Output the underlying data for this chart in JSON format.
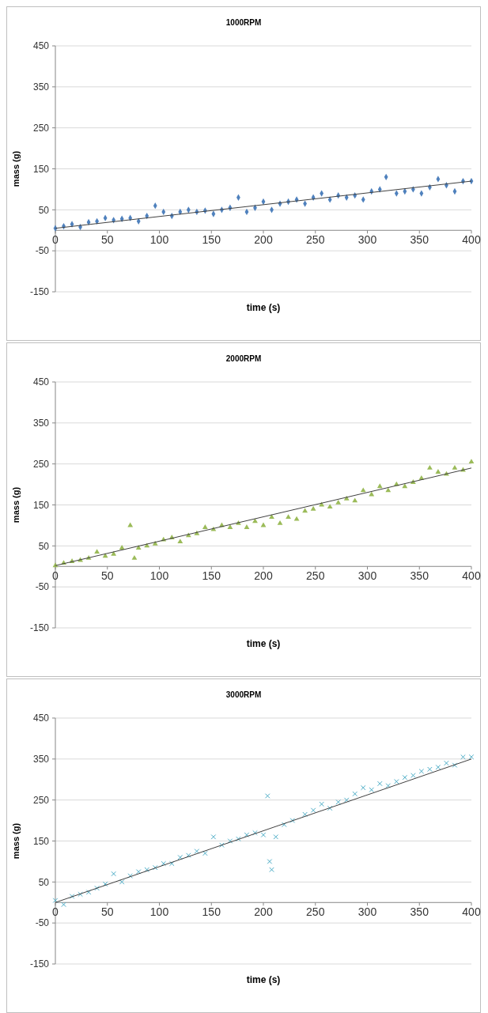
{
  "chart_data": [
    {
      "type": "scatter",
      "title": "1000RPM",
      "xlabel": "time (s)",
      "ylabel": "mass (g)",
      "xlim": [
        0,
        400
      ],
      "ylim": [
        -150,
        450
      ],
      "xticks": [
        0,
        50,
        100,
        150,
        200,
        250,
        300,
        350,
        400
      ],
      "yticks": [
        -150,
        -50,
        50,
        150,
        250,
        350,
        450
      ],
      "grid": "y",
      "series": [
        {
          "marker": "diamond",
          "color": "#4f81bd",
          "x": [
            0,
            8,
            16,
            24,
            32,
            40,
            48,
            56,
            64,
            72,
            80,
            88,
            96,
            104,
            112,
            120,
            128,
            136,
            144,
            152,
            160,
            168,
            176,
            184,
            192,
            200,
            208,
            216,
            224,
            232,
            240,
            248,
            256,
            264,
            272,
            280,
            288,
            296,
            304,
            312,
            318,
            328,
            336,
            344,
            352,
            360,
            368,
            376,
            384,
            392,
            400
          ],
          "values": [
            5,
            10,
            15,
            8,
            20,
            22,
            30,
            25,
            28,
            30,
            22,
            35,
            60,
            45,
            35,
            45,
            50,
            45,
            48,
            40,
            50,
            55,
            80,
            45,
            55,
            70,
            50,
            65,
            70,
            75,
            65,
            80,
            90,
            75,
            85,
            80,
            85,
            75,
            95,
            100,
            130,
            90,
            95,
            100,
            90,
            105,
            125,
            110,
            95,
            120,
            120
          ]
        },
        {
          "type": "line",
          "color": "#404040",
          "x": [
            0,
            400
          ],
          "values": [
            5,
            120
          ]
        }
      ]
    },
    {
      "type": "scatter",
      "title": "2000RPM",
      "xlabel": "time (s)",
      "ylabel": "mass (g)",
      "xlim": [
        0,
        400
      ],
      "ylim": [
        -150,
        450
      ],
      "xticks": [
        0,
        50,
        100,
        150,
        200,
        250,
        300,
        350,
        400
      ],
      "yticks": [
        -150,
        -50,
        50,
        150,
        250,
        350,
        450
      ],
      "grid": "y",
      "series": [
        {
          "marker": "triangle",
          "color": "#9bbb59",
          "x": [
            0,
            8,
            16,
            24,
            32,
            40,
            48,
            56,
            64,
            72,
            76,
            80,
            88,
            96,
            104,
            112,
            120,
            128,
            136,
            144,
            152,
            160,
            168,
            176,
            184,
            192,
            200,
            208,
            216,
            224,
            232,
            240,
            248,
            256,
            264,
            272,
            280,
            288,
            296,
            304,
            312,
            320,
            328,
            336,
            344,
            352,
            360,
            368,
            376,
            384,
            392,
            400
          ],
          "values": [
            2,
            8,
            12,
            15,
            20,
            35,
            25,
            30,
            45,
            100,
            20,
            45,
            50,
            55,
            65,
            70,
            60,
            75,
            80,
            95,
            90,
            100,
            95,
            105,
            95,
            110,
            100,
            120,
            105,
            120,
            115,
            135,
            140,
            150,
            145,
            155,
            165,
            160,
            185,
            175,
            195,
            185,
            200,
            195,
            205,
            215,
            240,
            230,
            225,
            240,
            235,
            255
          ]
        },
        {
          "type": "line",
          "color": "#404040",
          "x": [
            0,
            400
          ],
          "values": [
            2,
            240
          ]
        }
      ]
    },
    {
      "type": "scatter",
      "title": "3000RPM",
      "xlabel": "time (s)",
      "ylabel": "mass (g)",
      "xlim": [
        0,
        400
      ],
      "ylim": [
        -150,
        450
      ],
      "xticks": [
        0,
        50,
        100,
        150,
        200,
        250,
        300,
        350,
        400
      ],
      "yticks": [
        -150,
        -50,
        50,
        150,
        250,
        350,
        450
      ],
      "grid": "y",
      "series": [
        {
          "marker": "cross",
          "color": "#4bacc6",
          "x": [
            0,
            8,
            16,
            24,
            32,
            40,
            48,
            56,
            64,
            72,
            80,
            88,
            96,
            104,
            112,
            120,
            128,
            136,
            144,
            152,
            160,
            168,
            176,
            184,
            192,
            200,
            204,
            206,
            208,
            212,
            220,
            228,
            240,
            248,
            256,
            264,
            272,
            280,
            288,
            296,
            304,
            312,
            320,
            328,
            336,
            344,
            352,
            360,
            368,
            376,
            384,
            392,
            400
          ],
          "values": [
            5,
            -5,
            15,
            20,
            25,
            35,
            45,
            70,
            50,
            65,
            75,
            80,
            85,
            95,
            95,
            110,
            115,
            125,
            120,
            160,
            140,
            150,
            155,
            165,
            170,
            165,
            260,
            100,
            80,
            160,
            190,
            200,
            215,
            225,
            240,
            230,
            245,
            250,
            265,
            280,
            275,
            290,
            285,
            295,
            305,
            310,
            320,
            325,
            330,
            340,
            335,
            355,
            355
          ]
        },
        {
          "type": "line",
          "color": "#404040",
          "x": [
            0,
            400
          ],
          "values": [
            0,
            350
          ]
        }
      ]
    }
  ]
}
